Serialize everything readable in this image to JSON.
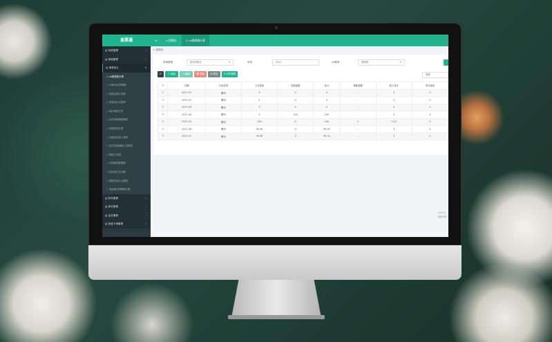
{
  "colors": {
    "brand": "#1fb58f",
    "sidebar": "#2b3a40",
    "danger": "#f08a7e",
    "gray": "#7b8b90",
    "dark": "#2f4046"
  },
  "app": {
    "logo": "易票通"
  },
  "header": {
    "menu_icon": "hamburger-icon",
    "tabs": [
      {
        "label": "控制台",
        "icon": "home-icon"
      },
      {
        "label": "xx报表统计表",
        "icon": "circle-icon"
      }
    ]
  },
  "sidebar": {
    "groups_top": [
      {
        "label": "系统管理"
      },
      {
        "label": "商城管理"
      },
      {
        "label": "报表统计"
      }
    ],
    "sub_items": [
      {
        "label": "xx报表统计表"
      },
      {
        "label": "xx转出记录明细"
      },
      {
        "label": "商品交易汇总表"
      },
      {
        "label": "资金流水日报表"
      },
      {
        "label": "每月消费汇总"
      },
      {
        "label": "会员消费明细报表"
      },
      {
        "label": "进销存统计表"
      },
      {
        "label": "月度收支收入报表"
      },
      {
        "label": "会员充值退款汇总报表"
      },
      {
        "label": "销售汇总表"
      },
      {
        "label": "分类销售数据表"
      },
      {
        "label": "供应商汇总对账"
      },
      {
        "label": "提现记录汇总报表"
      },
      {
        "label": "商品库存预警统计表"
      }
    ],
    "groups_bottom": [
      {
        "label": "财务管理"
      },
      {
        "label": "库存管理"
      },
      {
        "label": "会员管理"
      },
      {
        "label": "快递下单管理"
      }
    ]
  },
  "breadcrumb": "控制台",
  "filters": {
    "type_label": "时间类型",
    "type_value": "按月份统计",
    "year_label": "年份",
    "year_value": "2021",
    "account_label": "xx账号",
    "account_value": "请选择"
  },
  "toolbar": {
    "refresh_icon": "refresh-icon",
    "add": "+ 添加",
    "edit": "✎ 编辑",
    "delete": "🗑 删除",
    "export": "⊕ 导出",
    "print": "⊕ 打印报表",
    "search_placeholder": "搜索"
  },
  "table": {
    "headers": [
      "日期",
      "平台名称",
      "上月结余",
      "充值金额",
      "合计",
      "退款金额",
      "收入合计",
      "本月结余"
    ],
    "rows": [
      [
        "2021-01",
        "腾讯",
        "3",
        "0",
        "0",
        "-",
        "3",
        "0"
      ],
      [
        "2021-02",
        "腾讯",
        "2",
        "0",
        "0",
        "-",
        "3",
        "0"
      ],
      [
        "2021-03",
        "腾讯",
        "3",
        "0",
        "0",
        "-",
        "3",
        "0"
      ],
      [
        "2021-04",
        "腾讯",
        "3",
        "100",
        "100",
        "-",
        "3",
        "0"
      ],
      [
        "2021-05",
        "腾讯",
        "130",
        "0",
        "100",
        "2",
        "3.12",
        "0"
      ],
      [
        "2021-06",
        "腾讯",
        "90.56",
        "0",
        "99.90",
        "-",
        "3",
        "0"
      ],
      [
        "2021-07",
        "腾讯",
        "90.56",
        "0",
        "99.10",
        "-",
        "3",
        "0"
      ]
    ]
  },
  "footer": {
    "line1": "2021©",
    "line2": "版权所有"
  }
}
